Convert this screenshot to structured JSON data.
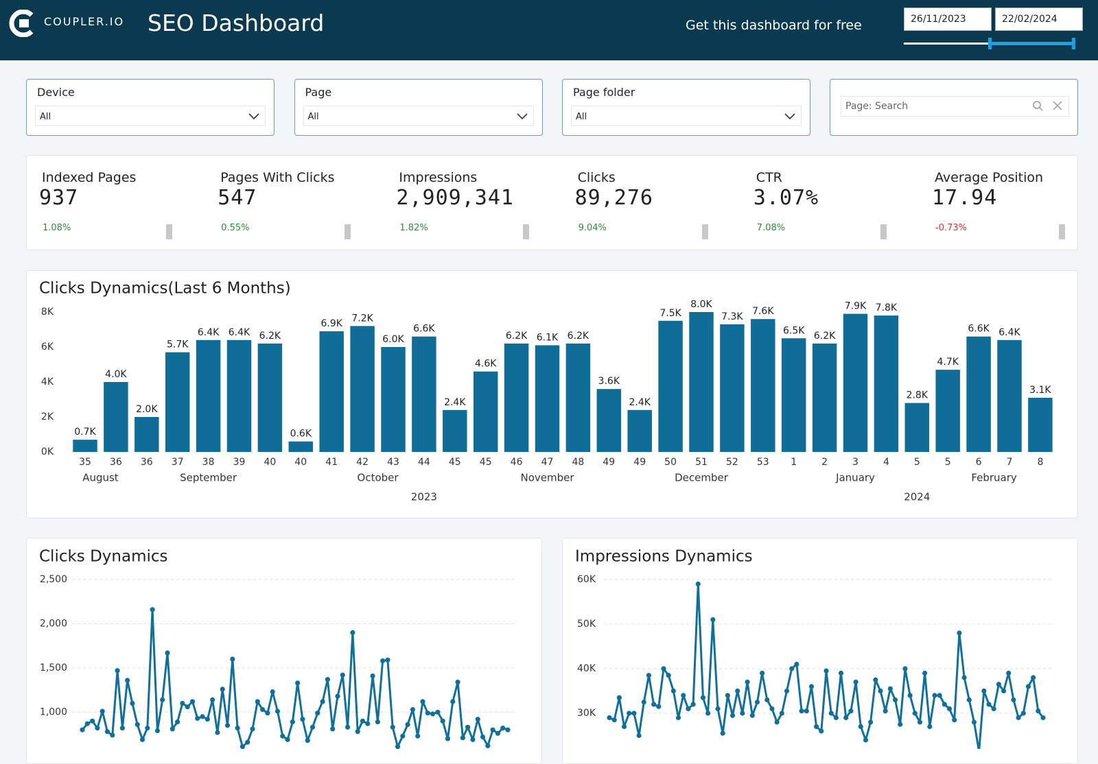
{
  "header": {
    "logo_text": "COUPLER.IO",
    "title": "SEO Dashboard",
    "cta": "Get this dashboard for free",
    "date_start": "26/11/2023",
    "date_end": "22/02/2024"
  },
  "filters": [
    {
      "label": "Device",
      "value": "All"
    },
    {
      "label": "Page",
      "value": "All"
    },
    {
      "label": "Page folder",
      "value": "All"
    }
  ],
  "search": {
    "placeholder": "Page: Search"
  },
  "kpis": [
    {
      "label": "Indexed Pages",
      "value": "937",
      "change": "1.08%",
      "change_color": "#2e8b3a"
    },
    {
      "label": "Pages With Clicks",
      "value": "547",
      "change": "0.55%",
      "change_color": "#2e8b3a"
    },
    {
      "label": "Impressions",
      "value": "2,909,341",
      "change": "1.82%",
      "change_color": "#2e8b3a"
    },
    {
      "label": "Clicks",
      "value": "89,276",
      "change": "9.04%",
      "change_color": "#2e8b3a"
    },
    {
      "label": "CTR",
      "value": "3.07%",
      "change": "7.08%",
      "change_color": "#2e8b3a"
    },
    {
      "label": "Average Position",
      "value": "17.94",
      "change": "-0.73%",
      "change_color": "#e0322d"
    }
  ],
  "chart_data": [
    {
      "type": "bar",
      "title": "Clicks Dynamics(Last 6 Months)",
      "categories": [
        "35",
        "36",
        "36",
        "37",
        "38",
        "39",
        "40",
        "40",
        "41",
        "42",
        "43",
        "44",
        "45",
        "45",
        "46",
        "47",
        "48",
        "49",
        "49",
        "50",
        "51",
        "52",
        "53",
        "1",
        "2",
        "3",
        "4",
        "5",
        "5",
        "6",
        "7",
        "8"
      ],
      "months": [
        "August",
        "August",
        "September",
        "September",
        "September",
        "September",
        "September",
        "October",
        "October",
        "October",
        "October",
        "October",
        "October",
        "November",
        "November",
        "November",
        "November",
        "November",
        "December",
        "December",
        "December",
        "December",
        "December",
        "January",
        "January",
        "January",
        "January",
        "January",
        "February",
        "February",
        "February",
        "February"
      ],
      "years": [
        "2023",
        "2023",
        "2023",
        "2023",
        "2023",
        "2023",
        "2023",
        "2023",
        "2023",
        "2023",
        "2023",
        "2023",
        "2023",
        "2023",
        "2023",
        "2023",
        "2023",
        "2023",
        "2023",
        "2023",
        "2023",
        "2023",
        "2023",
        "2024",
        "2024",
        "2024",
        "2024",
        "2024",
        "2024",
        "2024",
        "2024",
        "2024"
      ],
      "values": [
        700,
        4000,
        2000,
        5700,
        6400,
        6400,
        6200,
        600,
        6900,
        7200,
        6000,
        6600,
        2400,
        4600,
        6200,
        6100,
        6200,
        3600,
        2400,
        7500,
        8000,
        7300,
        7600,
        6500,
        6200,
        7900,
        7800,
        2800,
        4700,
        6600,
        6400,
        3100
      ],
      "value_labels": [
        "0.7K",
        "4.0K",
        "2.0K",
        "5.7K",
        "6.4K",
        "6.4K",
        "6.2K",
        "0.6K",
        "6.9K",
        "7.2K",
        "6.0K",
        "6.6K",
        "2.4K",
        "4.6K",
        "6.2K",
        "6.1K",
        "6.2K",
        "3.6K",
        "2.4K",
        "7.5K",
        "8.0K",
        "7.3K",
        "7.6K",
        "6.5K",
        "6.2K",
        "7.9K",
        "7.8K",
        "2.8K",
        "4.7K",
        "6.6K",
        "6.4K",
        "3.1K"
      ],
      "color": "#0f6d97",
      "ylim": [
        0,
        8000
      ],
      "yticks": [
        {
          "value": 0,
          "label": "0K"
        },
        {
          "value": 2000,
          "label": "2K"
        },
        {
          "value": 4000,
          "label": "4K"
        },
        {
          "value": 6000,
          "label": "6K"
        },
        {
          "value": 8000,
          "label": "8K"
        }
      ],
      "grid": false
    },
    {
      "type": "line",
      "title": "Clicks Dynamics",
      "values": [
        800,
        870,
        900,
        820,
        1010,
        780,
        740,
        1470,
        820,
        1360,
        1100,
        860,
        690,
        820,
        2160,
        790,
        1140,
        1670,
        810,
        890,
        1100,
        1060,
        1120,
        930,
        950,
        920,
        1140,
        770,
        1260,
        850,
        1600,
        820,
        610,
        660,
        810,
        1120,
        1030,
        990,
        1230,
        1010,
        730,
        690,
        890,
        1330,
        920,
        680,
        830,
        990,
        1120,
        1370,
        810,
        1180,
        1420,
        830,
        1900,
        780,
        900,
        870,
        1410,
        890,
        1580,
        1590,
        830,
        610,
        730,
        860,
        1030,
        730,
        1120,
        990,
        980,
        1000,
        900,
        700,
        1120,
        1340,
        710,
        830,
        690,
        920,
        720,
        620,
        800,
        760,
        820,
        800
      ],
      "color": "#11709a",
      "ylim": [
        600,
        2500
      ],
      "yticks": [
        {
          "value": 1000,
          "label": "1,000"
        },
        {
          "value": 1500,
          "label": "1,500"
        },
        {
          "value": 2000,
          "label": "2,000"
        },
        {
          "value": 2500,
          "label": "2,500"
        }
      ],
      "grid": true
    },
    {
      "type": "line",
      "title": "Impressions Dynamics",
      "values": [
        29000,
        28500,
        33500,
        27000,
        30000,
        30000,
        25000,
        32500,
        38500,
        32000,
        31500,
        40000,
        38500,
        35000,
        29000,
        34000,
        31000,
        32000,
        59000,
        33500,
        30000,
        51000,
        31000,
        25500,
        34000,
        29500,
        35000,
        30000,
        37000,
        29500,
        32500,
        39000,
        33000,
        31000,
        28000,
        30000,
        35000,
        40000,
        41000,
        30500,
        30500,
        36000,
        27000,
        26000,
        39500,
        30000,
        29000,
        39000,
        29000,
        30500,
        37000,
        27000,
        24000,
        28000,
        37500,
        35000,
        30500,
        35500,
        33000,
        27500,
        40000,
        34000,
        30000,
        28000,
        39000,
        27000,
        34000,
        34000,
        32000,
        31000,
        28500,
        48000,
        38000,
        33000,
        28000,
        21500,
        35000,
        32000,
        31000,
        36500,
        35000,
        39000,
        33000,
        29000,
        30000,
        36000,
        38000,
        30500,
        29000
      ],
      "color": "#11709a",
      "ylim": [
        22000,
        60000
      ],
      "yticks": [
        {
          "value": 30000,
          "label": "30K"
        },
        {
          "value": 40000,
          "label": "40K"
        },
        {
          "value": 50000,
          "label": "50K"
        },
        {
          "value": 60000,
          "label": "60K"
        }
      ],
      "grid": true
    }
  ]
}
